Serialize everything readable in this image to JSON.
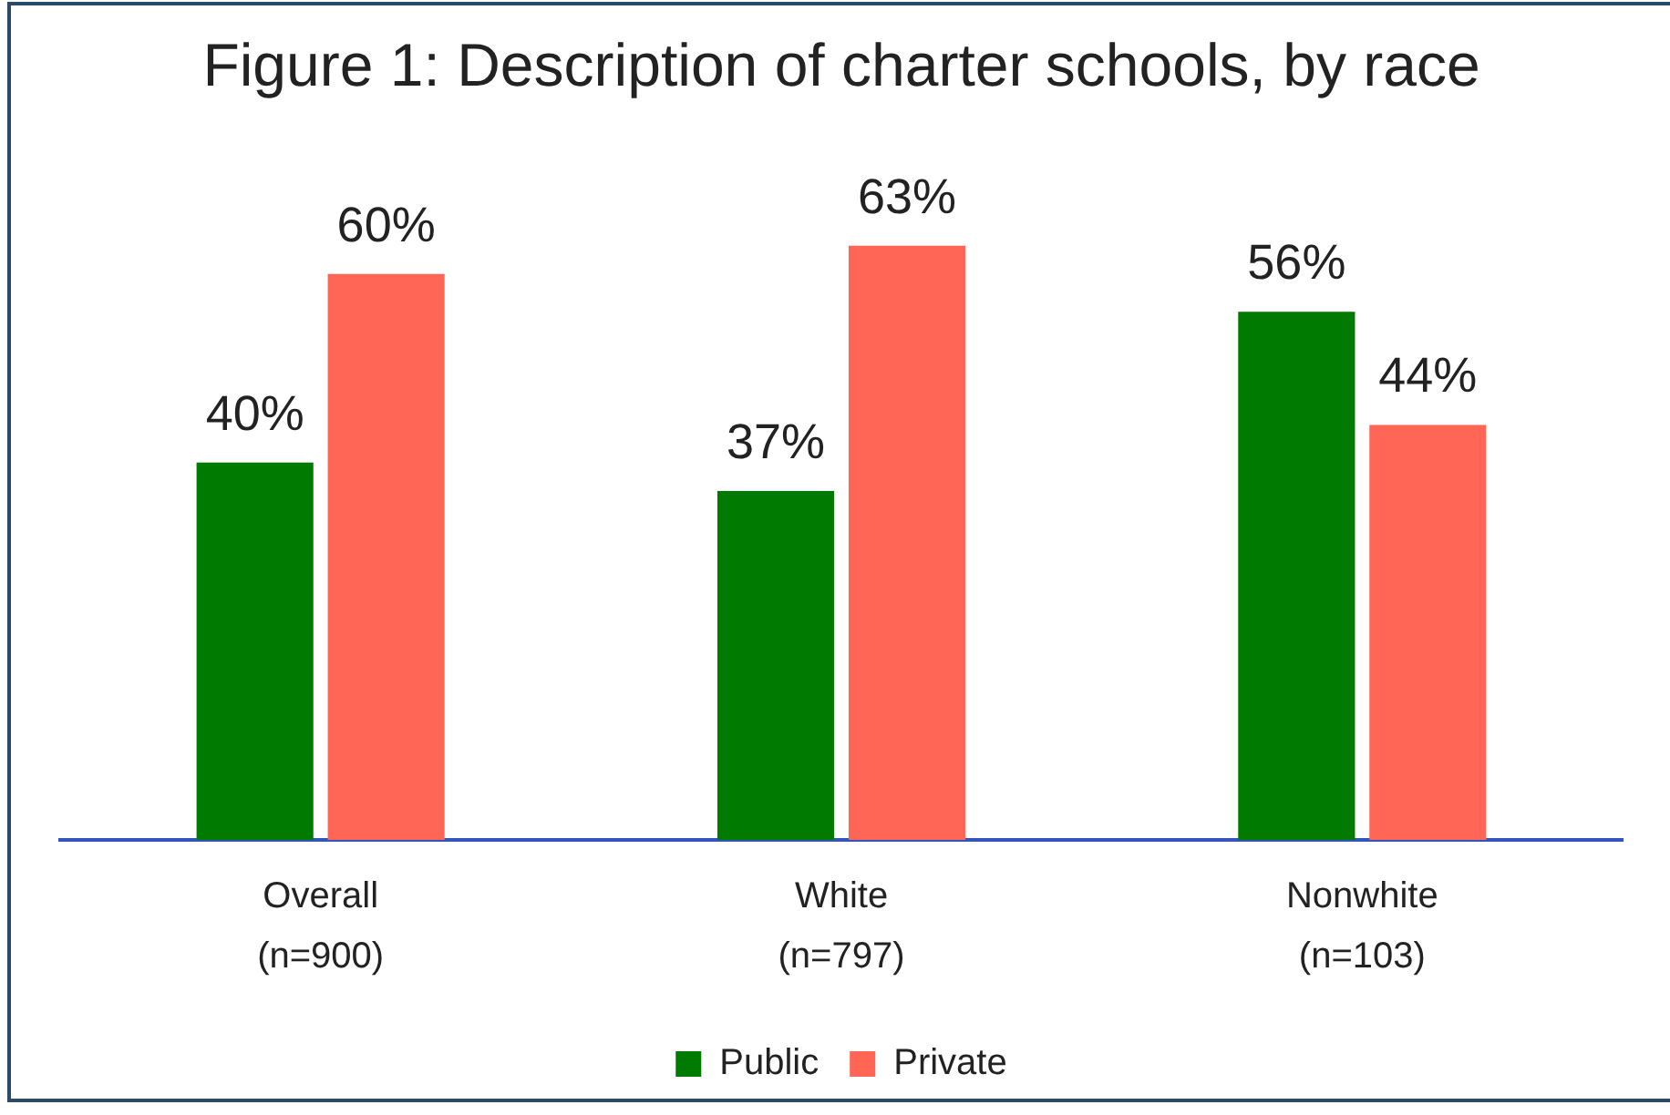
{
  "chart_data": {
    "type": "bar",
    "title": "Figure 1: Description of charter schools, by race",
    "categories": [
      "Overall (n=900)",
      "White (n=797)",
      "Nonwhite (n=103)"
    ],
    "series": [
      {
        "name": "Public",
        "color": "#007a00",
        "values": [
          40,
          37,
          56
        ],
        "value_labels": [
          "40%",
          "37%",
          "56%"
        ]
      },
      {
        "name": "Private",
        "color": "#ff6655",
        "values": [
          60,
          63,
          44
        ],
        "value_labels": [
          "60%",
          "63%",
          "44%"
        ]
      }
    ],
    "tick_labels": "x",
    "legend": "bottom"
  }
}
